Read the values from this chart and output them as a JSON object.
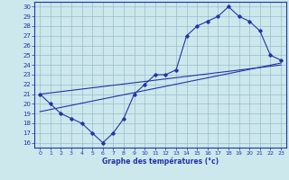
{
  "xlabel": "Graphe des températures (°c)",
  "bg_color": "#cce8ec",
  "line_color": "#2233aa",
  "grid_color": "#99bbcc",
  "xlim": [
    -0.5,
    23.5
  ],
  "ylim": [
    15.5,
    30.5
  ],
  "yticks": [
    16,
    17,
    18,
    19,
    20,
    21,
    22,
    23,
    24,
    25,
    26,
    27,
    28,
    29,
    30
  ],
  "xticks": [
    0,
    1,
    2,
    3,
    4,
    5,
    6,
    7,
    8,
    9,
    10,
    11,
    12,
    13,
    14,
    15,
    16,
    17,
    18,
    19,
    20,
    21,
    22,
    23
  ],
  "line1_x": [
    0,
    1,
    2,
    3,
    4,
    5,
    6,
    7,
    8,
    9,
    10,
    11,
    12,
    13,
    14,
    15,
    16,
    17,
    18,
    19,
    20,
    21,
    22,
    23
  ],
  "line1_y": [
    21,
    20,
    19,
    18.5,
    18,
    17,
    16,
    17,
    18.5,
    21,
    22,
    23,
    23,
    23.5,
    27,
    28,
    28.5,
    29,
    30,
    29,
    28.5,
    27.5,
    25,
    24.5
  ],
  "line2_x": [
    0,
    23
  ],
  "line2_y": [
    21.0,
    24.0
  ],
  "line3_x": [
    0,
    23
  ],
  "line3_y": [
    19.2,
    24.2
  ]
}
